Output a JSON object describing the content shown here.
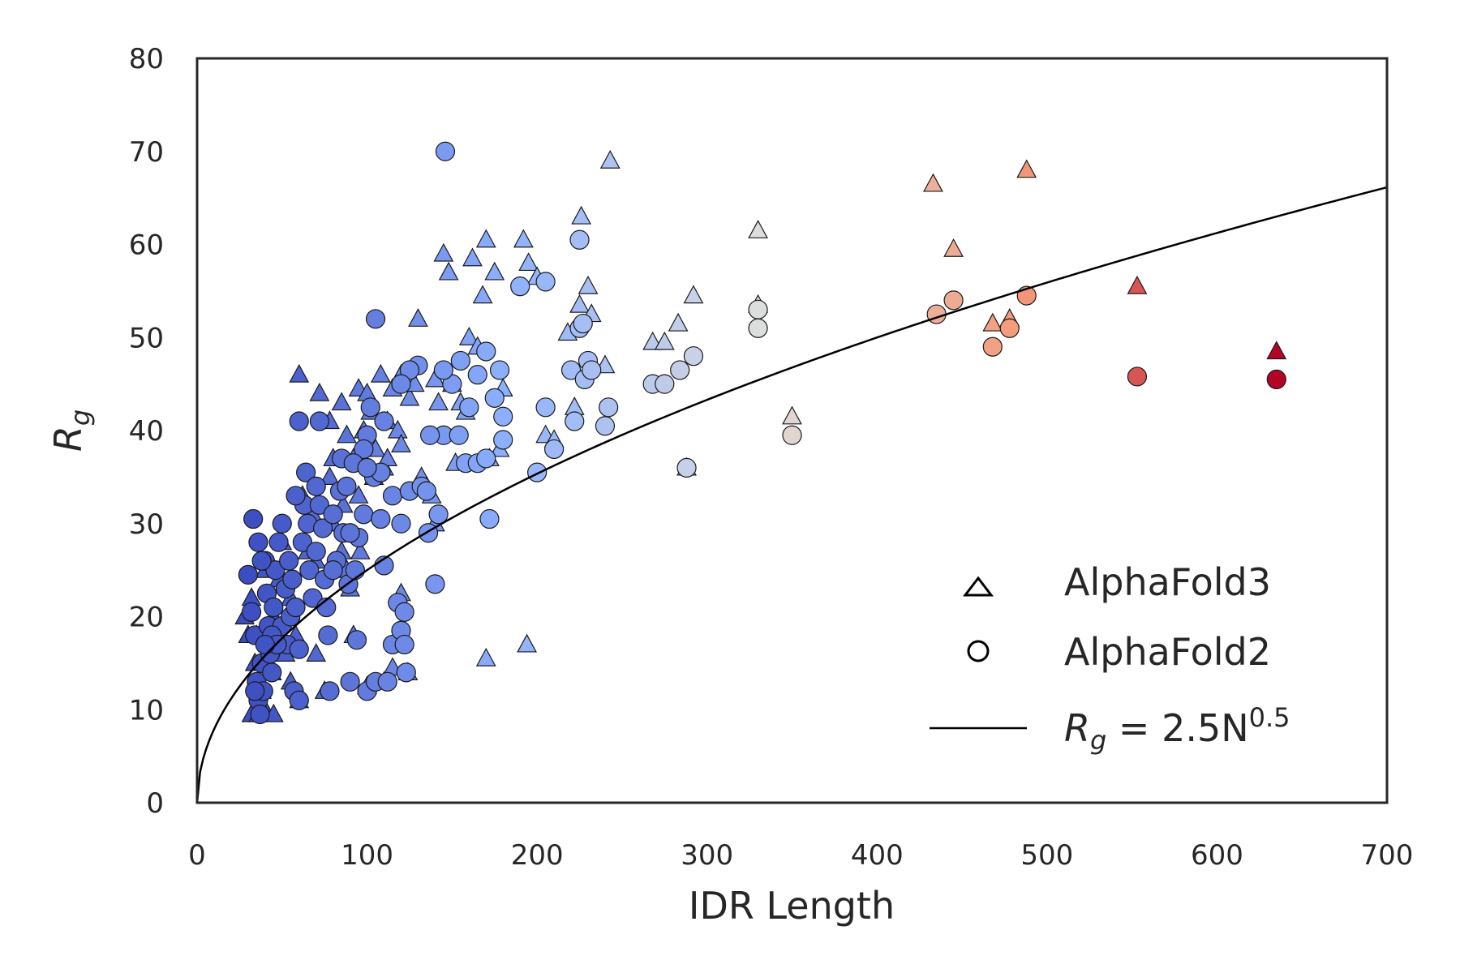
{
  "chart_data": {
    "type": "scatter",
    "xlabel": "IDR Length",
    "ylabel_base": "R",
    "ylabel_sub": "g",
    "xlim": [
      0,
      700
    ],
    "ylim": [
      0,
      80
    ],
    "xticks": [
      "0",
      "100",
      "200",
      "300",
      "400",
      "500",
      "600",
      "700"
    ],
    "yticks": [
      "0",
      "10",
      "20",
      "30",
      "40",
      "50",
      "60",
      "70",
      "80"
    ],
    "grid": false,
    "legend_position": "lower-right",
    "legend": {
      "af3": "AlphaFold3",
      "af2": "AlphaFold2",
      "fit_base": "R",
      "fit_sub": "g",
      "fit_eq": " = 2.5N",
      "fit_exp": "0.5"
    },
    "colormap": "coolwarm",
    "colormap_stops": [
      "#3b4cc0",
      "#8db0fe",
      "#dddddd",
      "#f49a7b",
      "#b40426"
    ],
    "fit": {
      "a": 2.5,
      "b": 0.5
    },
    "series": [
      {
        "name": "AlphaFold3",
        "marker": "triangle",
        "points": [
          [
            60,
            46
          ],
          [
            72,
            44
          ],
          [
            78,
            41
          ],
          [
            85,
            43
          ],
          [
            88,
            39.5
          ],
          [
            92,
            37
          ],
          [
            95,
            44.5
          ],
          [
            98,
            40
          ],
          [
            100,
            44
          ],
          [
            102,
            42
          ],
          [
            105,
            38
          ],
          [
            108,
            46
          ],
          [
            110,
            36
          ],
          [
            112,
            41
          ],
          [
            115,
            44.5
          ],
          [
            118,
            40
          ],
          [
            120,
            46
          ],
          [
            125,
            43.5
          ],
          [
            128,
            45
          ],
          [
            130,
            52
          ],
          [
            132,
            35
          ],
          [
            135,
            34
          ],
          [
            138,
            33
          ],
          [
            140,
            45.5
          ],
          [
            142,
            43
          ],
          [
            145,
            59
          ],
          [
            148,
            57
          ],
          [
            150,
            45
          ],
          [
            152,
            36.5
          ],
          [
            155,
            43
          ],
          [
            158,
            42
          ],
          [
            160,
            50
          ],
          [
            162,
            58.5
          ],
          [
            165,
            49
          ],
          [
            168,
            54.5
          ],
          [
            170,
            60.5
          ],
          [
            172,
            37
          ],
          [
            175,
            57
          ],
          [
            178,
            38
          ],
          [
            180,
            44.5
          ],
          [
            192,
            60.5
          ],
          [
            195,
            58
          ],
          [
            200,
            56.5
          ],
          [
            205,
            39.5
          ],
          [
            210,
            39
          ],
          [
            218,
            50.5
          ],
          [
            222,
            42.5
          ],
          [
            225,
            53.5
          ],
          [
            226,
            63
          ],
          [
            230,
            55.5
          ],
          [
            232,
            52.5
          ],
          [
            240,
            47
          ],
          [
            243,
            69
          ],
          [
            268,
            49.5
          ],
          [
            275,
            49.5
          ],
          [
            283,
            51.5
          ],
          [
            288,
            36
          ],
          [
            292,
            54.5
          ],
          [
            330,
            61.5
          ],
          [
            330,
            53.5
          ],
          [
            350,
            41.5
          ],
          [
            433,
            66.5
          ],
          [
            445,
            59.5
          ],
          [
            468,
            51.5
          ],
          [
            478,
            52
          ],
          [
            488,
            68
          ],
          [
            553,
            55.5
          ],
          [
            635,
            48.5
          ],
          [
            28,
            20
          ],
          [
            30,
            18
          ],
          [
            32,
            22
          ],
          [
            34,
            15
          ],
          [
            35,
            10
          ],
          [
            38,
            12
          ],
          [
            40,
            25
          ],
          [
            42,
            17
          ],
          [
            45,
            20
          ],
          [
            48,
            24
          ],
          [
            50,
            28
          ],
          [
            52,
            16
          ],
          [
            55,
            22
          ],
          [
            58,
            18
          ],
          [
            60,
            11
          ],
          [
            65,
            27
          ],
          [
            68,
            31
          ],
          [
            70,
            16
          ],
          [
            75,
            12
          ],
          [
            78,
            35
          ],
          [
            80,
            30
          ],
          [
            85,
            27
          ],
          [
            88,
            25
          ],
          [
            90,
            23
          ],
          [
            92,
            18
          ],
          [
            95,
            33
          ],
          [
            100,
            12.5
          ],
          [
            110,
            13
          ],
          [
            115,
            14.5
          ],
          [
            120,
            22.5
          ],
          [
            120,
            17
          ],
          [
            124,
            14
          ],
          [
            32,
            9.5
          ],
          [
            36,
            9.5
          ],
          [
            40,
            10
          ],
          [
            45,
            9.5
          ],
          [
            55,
            13
          ],
          [
            62,
            33
          ],
          [
            70,
            26
          ],
          [
            80,
            37
          ],
          [
            86,
            32
          ],
          [
            96,
            27
          ],
          [
            104,
            35
          ],
          [
            112,
            37
          ],
          [
            120,
            38.5
          ],
          [
            170,
            15.5
          ],
          [
            194,
            17
          ],
          [
            140,
            30
          ],
          [
            35,
            18
          ],
          [
            44,
            14
          ]
        ]
      },
      {
        "name": "AlphaFold2",
        "marker": "circle",
        "points": [
          [
            146,
            70
          ],
          [
            105,
            52
          ],
          [
            60,
            41
          ],
          [
            72,
            41
          ],
          [
            225,
            60.5
          ],
          [
            190,
            55.5
          ],
          [
            205,
            56
          ],
          [
            170,
            48.5
          ],
          [
            155,
            47.5
          ],
          [
            165,
            46
          ],
          [
            178,
            46.5
          ],
          [
            180,
            41.5
          ],
          [
            175,
            43.5
          ],
          [
            160,
            42.5
          ],
          [
            150,
            45
          ],
          [
            145,
            46.5
          ],
          [
            130,
            47
          ],
          [
            125,
            46.5
          ],
          [
            120,
            45
          ],
          [
            110,
            41
          ],
          [
            102,
            42.5
          ],
          [
            100,
            39.5
          ],
          [
            98,
            38
          ],
          [
            104,
            35
          ],
          [
            108,
            35.5
          ],
          [
            115,
            33
          ],
          [
            120,
            30
          ],
          [
            125,
            33.5
          ],
          [
            132,
            34
          ],
          [
            135,
            33.5
          ],
          [
            136,
            29
          ],
          [
            140,
            23.5
          ],
          [
            142,
            31
          ],
          [
            145,
            39.5
          ],
          [
            137,
            39.5
          ],
          [
            154,
            39.5
          ],
          [
            158,
            36.5
          ],
          [
            165,
            36.5
          ],
          [
            170,
            37
          ],
          [
            172,
            30.5
          ],
          [
            180,
            39
          ],
          [
            200,
            35.5
          ],
          [
            205,
            42.5
          ],
          [
            210,
            38
          ],
          [
            220,
            46.5
          ],
          [
            222,
            41
          ],
          [
            225,
            51
          ],
          [
            227,
            51.5
          ],
          [
            228,
            45.5
          ],
          [
            230,
            47.5
          ],
          [
            232,
            46.5
          ],
          [
            240,
            40.5
          ],
          [
            242,
            42.5
          ],
          [
            268,
            45
          ],
          [
            275,
            45
          ],
          [
            284,
            46.5
          ],
          [
            288,
            36
          ],
          [
            292,
            48
          ],
          [
            330,
            53
          ],
          [
            330,
            51
          ],
          [
            350,
            39.5
          ],
          [
            435,
            52.5
          ],
          [
            445,
            54
          ],
          [
            468,
            49
          ],
          [
            478,
            51
          ],
          [
            488,
            54.5
          ],
          [
            553,
            45.8
          ],
          [
            635,
            45.5
          ],
          [
            30,
            24.5
          ],
          [
            32,
            20.5
          ],
          [
            34,
            18
          ],
          [
            35,
            13
          ],
          [
            36,
            11
          ],
          [
            37,
            9.5
          ],
          [
            38,
            15
          ],
          [
            39,
            12
          ],
          [
            40,
            26
          ],
          [
            41,
            22.5
          ],
          [
            42,
            19
          ],
          [
            43,
            16
          ],
          [
            44,
            14
          ],
          [
            45,
            21
          ],
          [
            46,
            25
          ],
          [
            48,
            28
          ],
          [
            50,
            30
          ],
          [
            50,
            19
          ],
          [
            52,
            23
          ],
          [
            53,
            17
          ],
          [
            54,
            26
          ],
          [
            55,
            20
          ],
          [
            56,
            24
          ],
          [
            57,
            12
          ],
          [
            58,
            21
          ],
          [
            60,
            16.5
          ],
          [
            60,
            11
          ],
          [
            62,
            28
          ],
          [
            63,
            32
          ],
          [
            64,
            35.5
          ],
          [
            65,
            30
          ],
          [
            66,
            25
          ],
          [
            68,
            22
          ],
          [
            70,
            34
          ],
          [
            70,
            27
          ],
          [
            72,
            32
          ],
          [
            74,
            29.5
          ],
          [
            75,
            24
          ],
          [
            76,
            21
          ],
          [
            77,
            18
          ],
          [
            78,
            12
          ],
          [
            80,
            31
          ],
          [
            82,
            26
          ],
          [
            84,
            33.5
          ],
          [
            85,
            37
          ],
          [
            86,
            29
          ],
          [
            88,
            34
          ],
          [
            89,
            23.5
          ],
          [
            90,
            13
          ],
          [
            92,
            36.5
          ],
          [
            93,
            25
          ],
          [
            94,
            17.5
          ],
          [
            95,
            28.5
          ],
          [
            98,
            31
          ],
          [
            100,
            12
          ],
          [
            105,
            13
          ],
          [
            108,
            30.5
          ],
          [
            110,
            25.5
          ],
          [
            112,
            13
          ],
          [
            115,
            17
          ],
          [
            118,
            21.5
          ],
          [
            120,
            18.5
          ],
          [
            122,
            17
          ],
          [
            123,
            14
          ],
          [
            122,
            20.5
          ],
          [
            33,
            30.5
          ],
          [
            36,
            28
          ],
          [
            38,
            26
          ],
          [
            44,
            18
          ],
          [
            47,
            17
          ],
          [
            58,
            33
          ],
          [
            34,
            12
          ],
          [
            40,
            17
          ],
          [
            80,
            25
          ],
          [
            90,
            29
          ],
          [
            100,
            36
          ]
        ]
      }
    ]
  }
}
